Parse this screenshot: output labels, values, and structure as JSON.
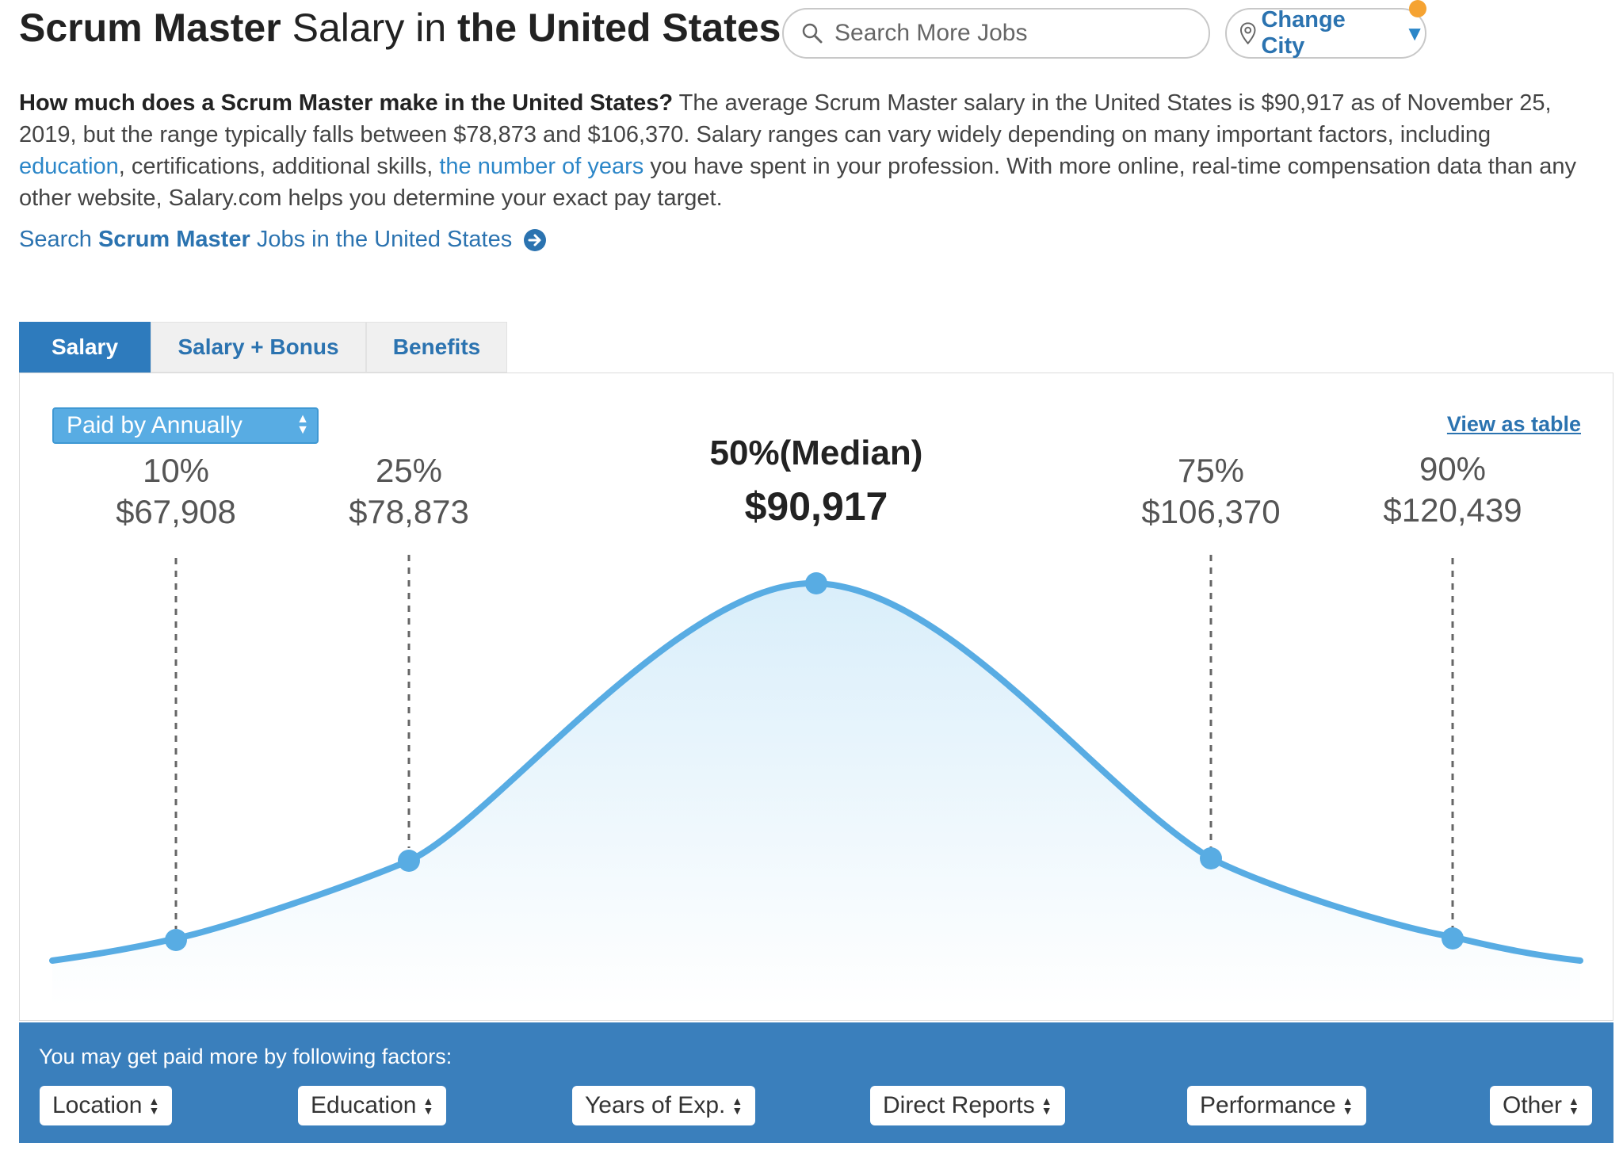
{
  "header": {
    "title_job": "Scrum Master",
    "title_mid": " Salary in ",
    "title_location": "the United States",
    "search_placeholder": "Search More Jobs",
    "change_city_label": "Change City"
  },
  "intro": {
    "question": "How much does a Scrum Master make in the United States?",
    "text_1": " The average Scrum Master salary in the United States is $90,917 as of November 25, 2019, but the range typically falls between $78,873 and $106,370. Salary ranges can vary widely depending on many important factors, including ",
    "link_education": "education",
    "text_2": ", certifications, additional skills, ",
    "link_years": "the number of years",
    "text_3": " you have spent in your profession. With more online, real-time compensation data than any other website, Salary.com helps you determine your exact pay target."
  },
  "search_link": {
    "prefix": "Search ",
    "job": "Scrum Master",
    "suffix": " Jobs in the United States"
  },
  "tabs": [
    {
      "label": "Salary",
      "active": true
    },
    {
      "label": "Salary + Bonus",
      "active": false
    },
    {
      "label": "Benefits",
      "active": false
    }
  ],
  "pay_select": {
    "selected": "Paid by Annually"
  },
  "view_table_label": "View as table",
  "colors": {
    "accent": "#2b73b0",
    "curve": "#58ace3",
    "factor_bar": "#3a7fbc",
    "notif": "#f5a332"
  },
  "chart_data": {
    "type": "area",
    "description_type": "salary distribution curve",
    "points": [
      {
        "percentile": "10%",
        "value_label": "$67,908",
        "value": 67908,
        "median": false
      },
      {
        "percentile": "25%",
        "value_label": "$78,873",
        "value": 78873,
        "median": false
      },
      {
        "percentile": "50%(Median)",
        "value_label": "$90,917",
        "value": 90917,
        "median": true
      },
      {
        "percentile": "75%",
        "value_label": "$106,370",
        "value": 106370,
        "median": false
      },
      {
        "percentile": "90%",
        "value_label": "$120,439",
        "value": 120439,
        "median": false
      }
    ]
  },
  "factors": {
    "heading": "You may get paid more by following factors:",
    "items": [
      "Location",
      "Education",
      "Years of Exp.",
      "Direct Reports",
      "Performance",
      "Other"
    ]
  }
}
